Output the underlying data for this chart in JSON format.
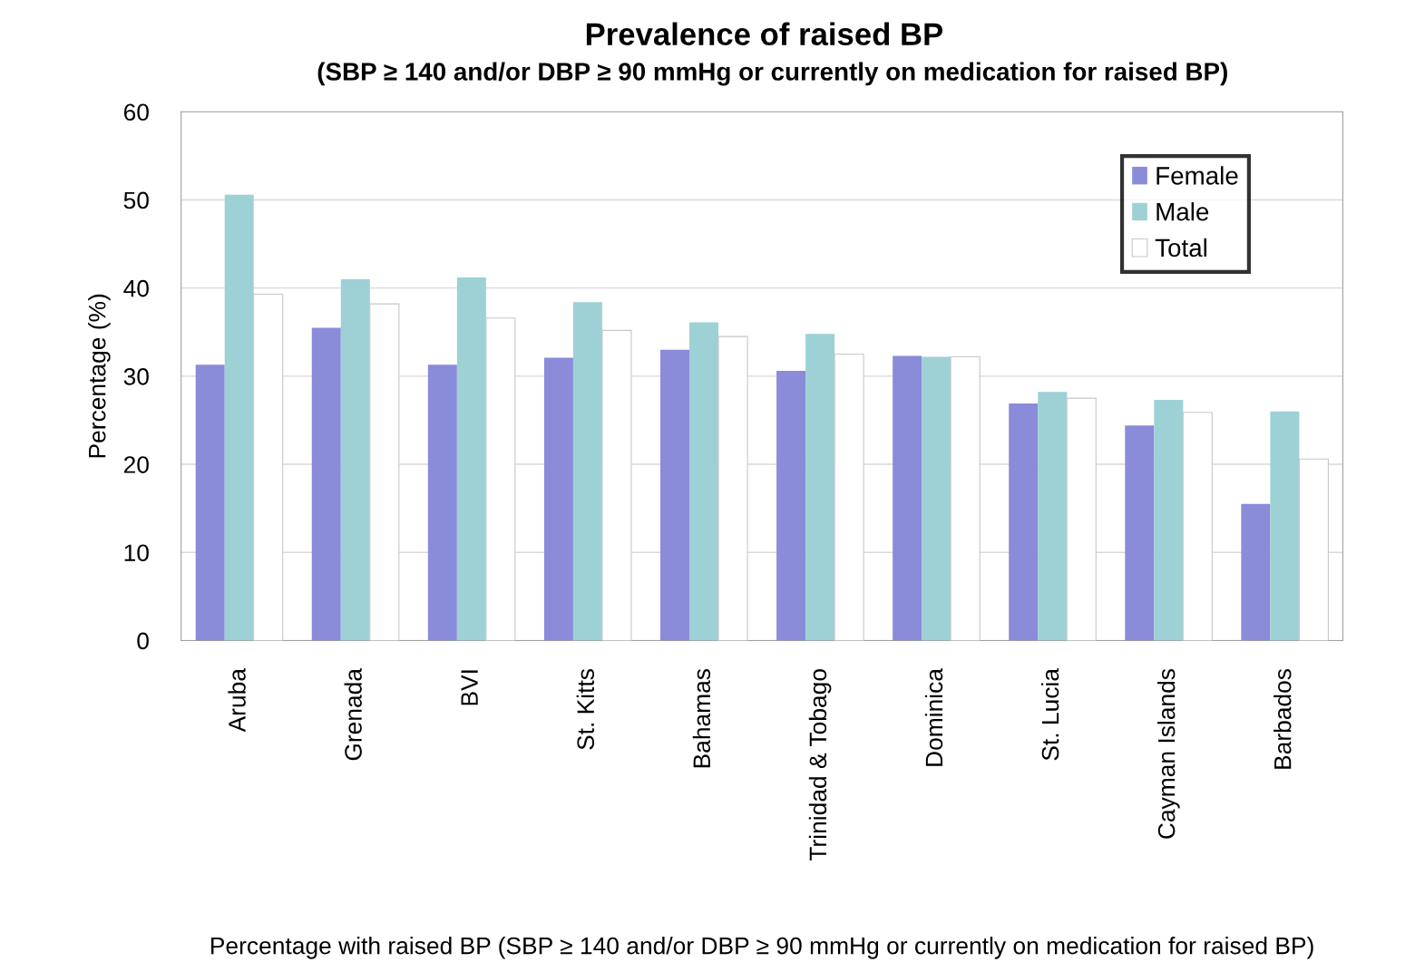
{
  "chart_data": {
    "type": "bar",
    "title": "Prevalence of raised BP",
    "subtitle": "(SBP ≥ 140 and/or DBP ≥ 90 mmHg or currently on medication for raised BP)",
    "ylabel": "Percentage (%)",
    "xlabel": "Percentage with raised BP (SBP ≥ 140 and/or DBP ≥ 90 mmHg or currently on medication for raised BP)",
    "categories": [
      "Aruba",
      "Grenada",
      "BVI",
      "St. Kitts",
      "Bahamas",
      "Trinidad & Tobago",
      "Dominica",
      "St. Lucia",
      "Cayman Islands",
      "Barbados"
    ],
    "series": [
      {
        "name": "Female",
        "color": "#8a8bd9",
        "values": [
          31.3,
          35.5,
          31.3,
          32.1,
          33.0,
          30.6,
          32.3,
          26.9,
          24.4,
          15.5
        ]
      },
      {
        "name": "Male",
        "color": "#9dd1d6",
        "values": [
          50.6,
          41.0,
          41.2,
          38.4,
          36.1,
          34.8,
          32.2,
          28.2,
          27.3,
          26.0
        ]
      },
      {
        "name": "Total",
        "color": "#ffffff",
        "values": [
          39.3,
          38.2,
          36.6,
          35.2,
          34.5,
          32.5,
          32.2,
          27.5,
          25.9,
          20.6
        ]
      }
    ],
    "ylim": [
      0,
      60
    ],
    "yticks": [
      0,
      10,
      20,
      30,
      40,
      50,
      60
    ],
    "grid": "y",
    "legend": "top right"
  }
}
